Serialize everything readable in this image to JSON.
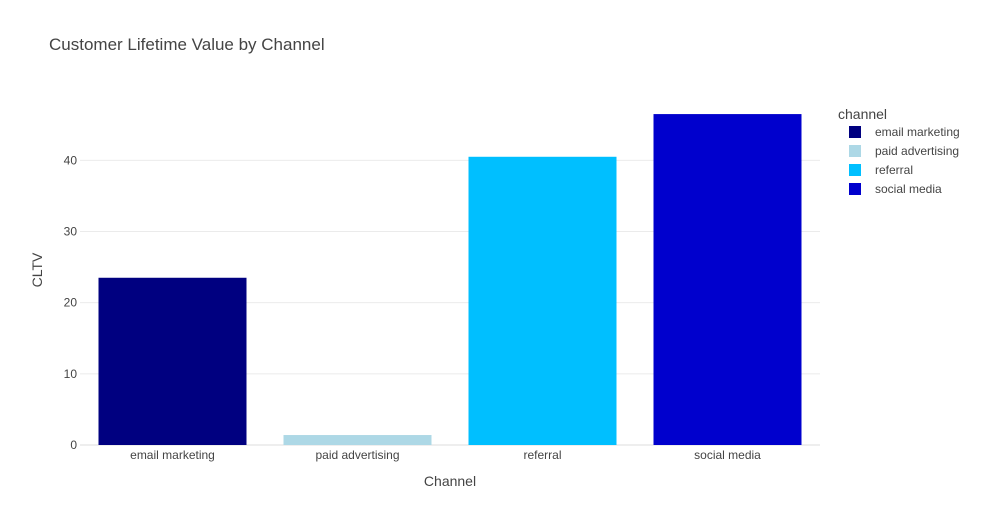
{
  "chart_data": {
    "type": "bar",
    "title": "Customer Lifetime Value by Channel",
    "xlabel": "Channel",
    "ylabel": "CLTV",
    "categories": [
      "email marketing",
      "paid advertising",
      "referral",
      "social media"
    ],
    "values": [
      23.5,
      1.4,
      40.5,
      46.5
    ],
    "colors": [
      "#000080",
      "#add8e6",
      "#00bfff",
      "#0000cd"
    ],
    "ylim": [
      0,
      48.9
    ],
    "yticks": [
      0,
      10,
      20,
      30,
      40
    ],
    "grid": true,
    "legend": {
      "title": "channel",
      "placement": "right",
      "entries": [
        "email marketing",
        "paid advertising",
        "referral",
        "social media"
      ]
    }
  }
}
